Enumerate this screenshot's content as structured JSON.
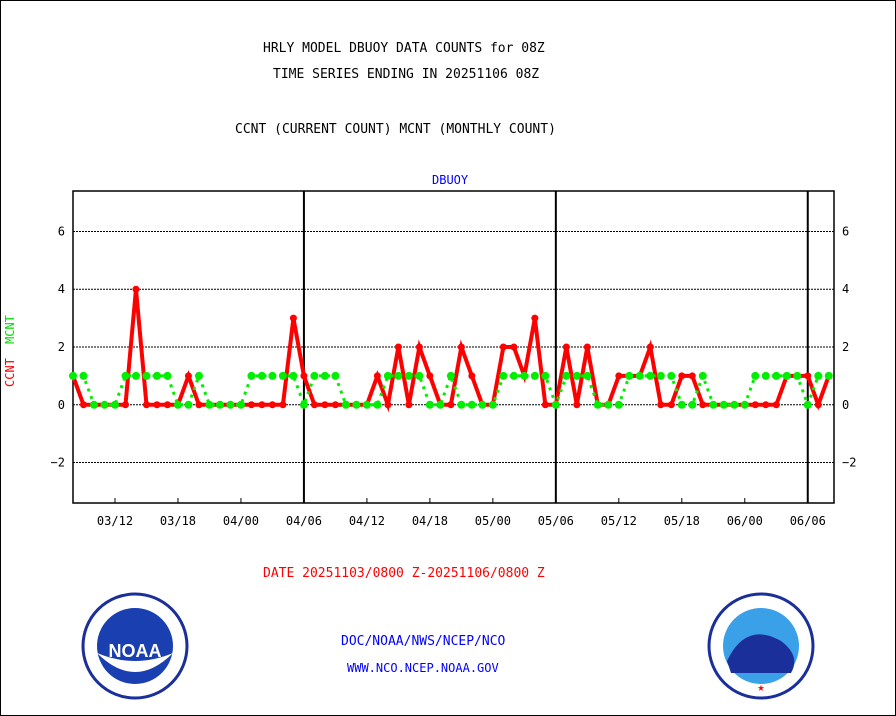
{
  "chart_data": {
    "type": "line",
    "title": [
      "HRLY MODEL DBUOY DATA COUNTS for 08Z",
      "TIME SERIES ENDING IN 20251106 08Z"
    ],
    "subtitle": "CCNT (CURRENT COUNT) MCNT (MONTHLY COUNT)",
    "panel_label": "DBUOY",
    "ylabel_ccnt": "CCNT",
    "ylabel_mcnt": "MCNT",
    "ylim": [
      -3.4,
      7.4
    ],
    "yticks": [
      -2,
      0,
      2,
      4,
      6
    ],
    "xticks": [
      {
        "hour": 4,
        "label": "03/12"
      },
      {
        "hour": 10,
        "label": "03/18"
      },
      {
        "hour": 16,
        "label": "04/00"
      },
      {
        "hour": 22,
        "label": "04/06"
      },
      {
        "hour": 28,
        "label": "04/12"
      },
      {
        "hour": 34,
        "label": "04/18"
      },
      {
        "hour": 40,
        "label": "05/00"
      },
      {
        "hour": 46,
        "label": "05/06"
      },
      {
        "hour": 52,
        "label": "05/12"
      },
      {
        "hour": 58,
        "label": "05/18"
      },
      {
        "hour": 64,
        "label": "06/00"
      },
      {
        "hour": 70,
        "label": "06/06"
      }
    ],
    "day_boundaries": [
      22,
      46,
      70
    ],
    "xlim": [
      0,
      72.5
    ],
    "series": [
      {
        "name": "CCNT",
        "color": "#ff0000",
        "values": [
          1,
          0,
          0,
          0,
          0,
          0,
          4,
          0,
          0,
          0,
          0,
          1,
          0,
          0,
          0,
          0,
          0,
          0,
          0,
          0,
          0,
          3,
          1,
          0,
          0,
          0,
          0,
          0,
          0,
          1,
          0,
          2,
          0,
          2,
          1,
          0,
          0,
          2,
          1,
          0,
          0,
          2,
          2,
          1,
          3,
          0,
          0,
          2,
          0,
          2,
          0,
          0,
          1,
          1,
          1,
          2,
          0,
          0,
          1,
          1,
          0,
          0,
          0,
          0,
          0,
          0,
          0,
          0,
          1,
          1,
          1,
          0,
          1
        ]
      },
      {
        "name": "MCNT",
        "color": "#00ee00",
        "values": [
          1,
          1,
          0,
          0,
          0,
          1,
          1,
          1,
          1,
          1,
          0,
          0,
          1,
          0,
          0,
          0,
          0,
          1,
          1,
          1,
          1,
          1,
          0,
          1,
          1,
          1,
          0,
          0,
          0,
          0,
          1,
          1,
          1,
          1,
          0,
          0,
          1,
          0,
          0,
          0,
          0,
          1,
          1,
          1,
          1,
          1,
          0,
          1,
          1,
          1,
          0,
          0,
          0,
          1,
          1,
          1,
          1,
          1,
          0,
          0,
          1,
          0,
          0,
          0,
          0,
          1,
          1,
          1,
          1,
          1,
          0,
          1,
          1
        ]
      }
    ],
    "date_range": "DATE 20251103/0800 Z-20251106/0800 Z"
  },
  "footer": {
    "line1": "DOC/NOAA/NWS/NCEP/NCO",
    "line2": "WWW.NCO.NCEP.NOAA.GOV"
  },
  "logos": {
    "noaa": "NOAA",
    "nws": "NATIONAL WEATHER SERVICE"
  }
}
